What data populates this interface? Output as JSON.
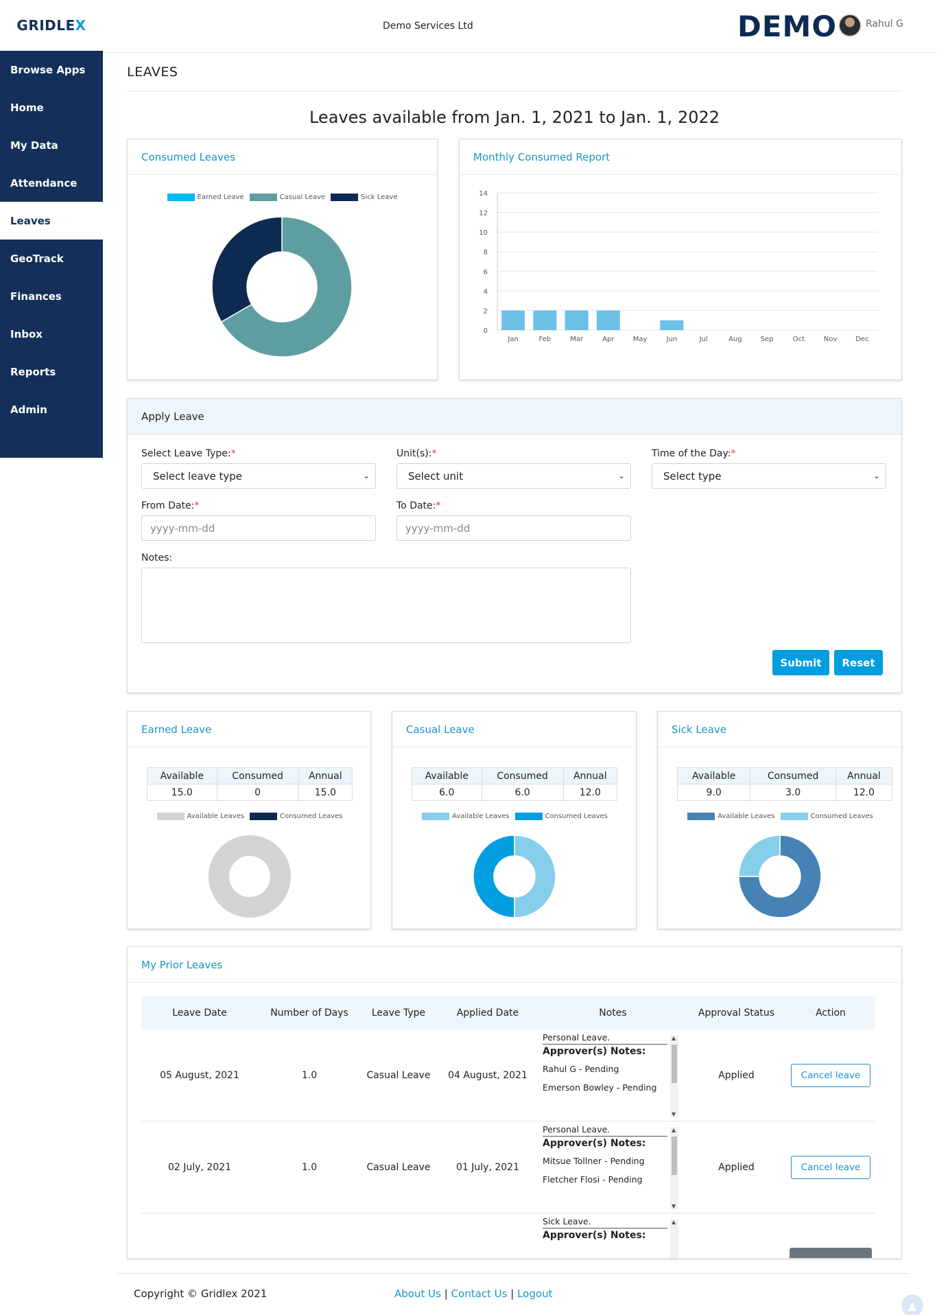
{
  "brand": {
    "logo_main": "GRIDLE",
    "logo_accent": "X",
    "demo_logo": "DEMO"
  },
  "header": {
    "company": "Demo Services Ltd",
    "user": "Rahul G"
  },
  "sidebar": {
    "items": [
      {
        "label": "Browse Apps"
      },
      {
        "label": "Home"
      },
      {
        "label": "My Data"
      },
      {
        "label": "Attendance"
      },
      {
        "label": "Leaves"
      },
      {
        "label": "GeoTrack"
      },
      {
        "label": "Finances"
      },
      {
        "label": "Inbox"
      },
      {
        "label": "Reports"
      },
      {
        "label": "Admin"
      }
    ],
    "active_index": 4
  },
  "page": {
    "title": "LEAVES",
    "headline": "Leaves available from Jan. 1, 2021 to Jan. 1, 2022"
  },
  "consumed_card": {
    "title": "Consumed Leaves"
  },
  "monthly_card": {
    "title": "Monthly Consumed Report"
  },
  "chart_data": [
    {
      "type": "pie",
      "categories": [
        "Earned Leave",
        "Casual Leave",
        "Sick Leave"
      ],
      "values": [
        0,
        6,
        3
      ],
      "colors": [
        "#00b9f2",
        "#5f9ea0",
        "#0d2b52"
      ]
    },
    {
      "type": "bar",
      "categories": [
        "Jan",
        "Feb",
        "Mar",
        "Apr",
        "May",
        "Jun",
        "Jul",
        "Aug",
        "Sep",
        "Oct",
        "Nov",
        "Dec"
      ],
      "values": [
        2,
        2,
        2,
        2,
        0,
        1,
        0,
        0,
        0,
        0,
        0,
        0
      ],
      "ylim": [
        0,
        14
      ],
      "yticks": [
        0,
        2,
        4,
        6,
        8,
        10,
        12,
        14
      ],
      "color": "#6cc0e5",
      "grid": true
    },
    {
      "type": "pie",
      "categories": [
        "Available Leaves",
        "Consumed Leaves"
      ],
      "values": [
        15,
        0
      ],
      "colors": [
        "#d3d3d3",
        "#0d2b52"
      ]
    },
    {
      "type": "pie",
      "categories": [
        "Available Leaves",
        "Consumed Leaves"
      ],
      "values": [
        6,
        6
      ],
      "colors": [
        "#87ceeb",
        "#009ee0"
      ]
    },
    {
      "type": "pie",
      "categories": [
        "Available Leaves",
        "Consumed Leaves"
      ],
      "values": [
        9,
        3
      ],
      "colors": [
        "#4682b4",
        "#87ceeb"
      ]
    }
  ],
  "apply": {
    "title": "Apply Leave",
    "leave_type_label": "Select Leave Type:",
    "leave_type_value": "Select leave type",
    "units_label": "Unit(s):",
    "units_value": "Select unit",
    "time_label": "Time of the Day:",
    "time_value": "Select type",
    "from_label": "From Date:",
    "from_placeholder": "yyyy-mm-dd",
    "to_label": "To Date:",
    "to_placeholder": "yyyy-mm-dd",
    "notes_label": "Notes:",
    "required_mark": "*",
    "submit": "Submit",
    "reset": "Reset"
  },
  "balances": {
    "headers": [
      "Available",
      "Consumed",
      "Annual"
    ],
    "cards": [
      {
        "title": "Earned Leave",
        "available": "15.0",
        "consumed": "0",
        "annual": "15.0"
      },
      {
        "title": "Casual Leave",
        "available": "6.0",
        "consumed": "6.0",
        "annual": "12.0"
      },
      {
        "title": "Sick Leave",
        "available": "9.0",
        "consumed": "3.0",
        "annual": "12.0"
      }
    ]
  },
  "prior": {
    "title": "My Prior Leaves",
    "headers": [
      "Leave Date",
      "Number of Days",
      "Leave Type",
      "Applied Date",
      "Notes",
      "Approval Status",
      "Action"
    ],
    "rows": [
      {
        "leave_date": "05 August, 2021",
        "days": "1.0",
        "type": "Casual Leave",
        "applied": "04 August, 2021",
        "note": "Personal Leave.",
        "approver_head": "Approver(s) Notes:",
        "approvers": [
          "Rahul G - Pending",
          "Emerson Bowley - Pending"
        ],
        "status": "Applied",
        "action": "Cancel leave"
      },
      {
        "leave_date": "02 July, 2021",
        "days": "1.0",
        "type": "Casual Leave",
        "applied": "01 July, 2021",
        "note": "Personal Leave.",
        "approver_head": "Approver(s) Notes:",
        "approvers": [
          "Mitsue Tollner - Pending",
          "Fletcher Flosi - Pending"
        ],
        "status": "Applied",
        "action": "Cancel leave"
      },
      {
        "note": "Sick Leave.",
        "approver_head": "Approver(s) Notes:"
      }
    ]
  },
  "footer": {
    "copyright": "Copyright © Gridlex 2021",
    "about": "About Us",
    "contact": "Contact Us",
    "logout": "Logout",
    "separator": "|"
  }
}
